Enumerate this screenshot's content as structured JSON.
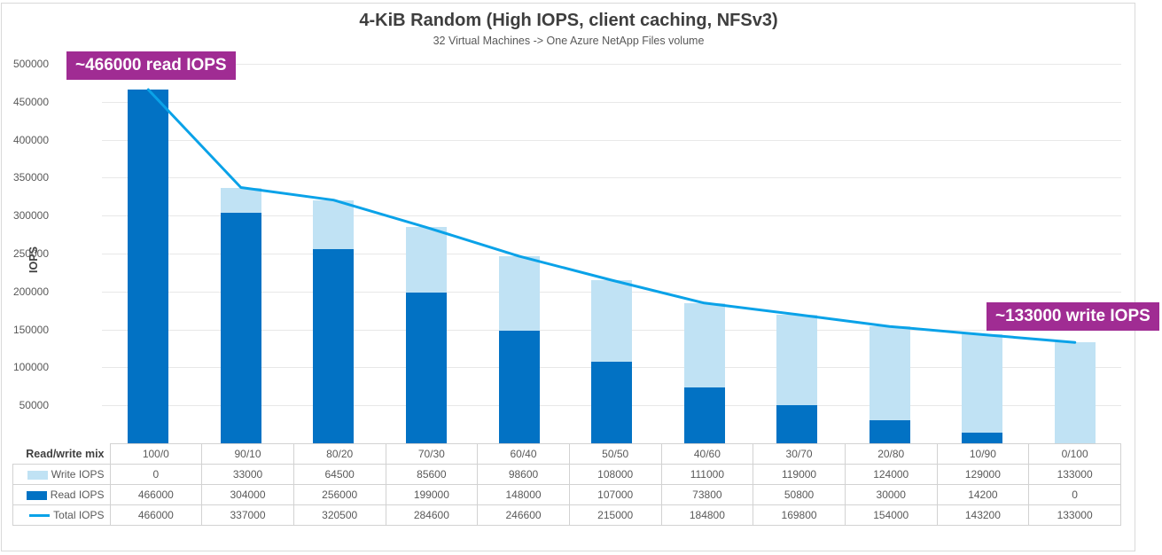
{
  "chart": {
    "title": "4-KiB Random (High IOPS, client caching, NFSv3)",
    "subtitle": "32 Virtual Machines -> One Azure NetApp Files volume",
    "y_axis_title": "IOPS"
  },
  "annotations": {
    "read_peak": "~466000 read IOPS",
    "write_peak": "~133000 write IOPS"
  },
  "chart_data": {
    "type": "bar",
    "subtype": "stacked-bars-with-line-overlay-and-data-table",
    "title": "4-KiB Random (High IOPS, client caching, NFSv3)",
    "subtitle": "32 Virtual Machines -> One Azure NetApp Files volume",
    "xlabel": "Read/write mix",
    "ylabel": "IOPS",
    "ylim": [
      0,
      500000
    ],
    "ytick_step": 50000,
    "yticks": [
      500000,
      450000,
      400000,
      350000,
      300000,
      250000,
      200000,
      150000,
      100000,
      50000
    ],
    "grid": true,
    "legend_position": "data-table-left",
    "data_table_row_header": "Read/write mix",
    "categories": [
      "100/0",
      "90/10",
      "80/20",
      "70/30",
      "60/40",
      "50/50",
      "40/60",
      "30/70",
      "20/80",
      "10/90",
      "0/100"
    ],
    "series": [
      {
        "name": "Write IOPS",
        "role": "bar-stack-top",
        "color": "#c0e2f4",
        "values": [
          0,
          33000,
          64500,
          85600,
          98600,
          108000,
          111000,
          119000,
          124000,
          129000,
          133000
        ]
      },
      {
        "name": "Read IOPS",
        "role": "bar-stack-bottom",
        "color": "#0272c4",
        "values": [
          466000,
          304000,
          256000,
          199000,
          148000,
          107000,
          73800,
          50800,
          30000,
          14200,
          0
        ]
      },
      {
        "name": "Total IOPS",
        "role": "line",
        "color": "#0aa2e8",
        "values": [
          466000,
          337000,
          320500,
          284600,
          246600,
          215000,
          184800,
          169800,
          154000,
          143200,
          133000
        ]
      }
    ]
  },
  "colors": {
    "read_bar": "#0272c4",
    "write_bar": "#c0e2f4",
    "total_line": "#0aa2e8",
    "annotation_bg": "#a02c93",
    "gridline": "#e8e8e8",
    "table_border": "#d2d2d2",
    "text_primary": "#3e3e3e",
    "text_secondary": "#595959"
  }
}
